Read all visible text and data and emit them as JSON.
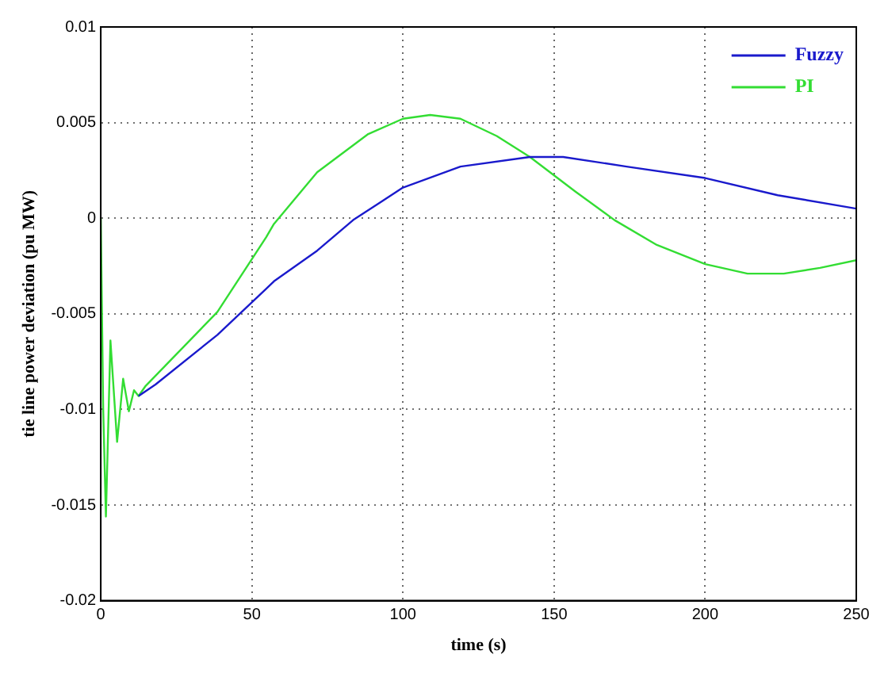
{
  "chart_data": {
    "type": "line",
    "xlabel": "time (s)",
    "ylabel": "tie line power deviation (pu MW)",
    "xlim": [
      0,
      250
    ],
    "xticks": [
      0,
      50,
      100,
      150,
      200,
      250
    ],
    "ylim": [
      -0.02,
      0.01
    ],
    "yticks": [
      -0.02,
      -0.015,
      -0.01,
      -0.005,
      0,
      0.005,
      0.01
    ],
    "grid": true,
    "legend": "top right",
    "marker": "none",
    "line_style": "solid",
    "series": [
      {
        "name": "Fuzzy",
        "color": "#1a1acc",
        "x": [
          12.5,
          18.1,
          38.6,
          54.7,
          57.3,
          71.6,
          83.5,
          100,
          119,
          142,
          153,
          174,
          200,
          224,
          250
        ],
        "values": [
          -0.0093,
          -0.0087,
          -0.0061,
          -0.0037,
          -0.0033,
          -0.0017,
          -0.0001,
          0.0016,
          0.0027,
          0.0032,
          0.0032,
          0.0027,
          0.0021,
          0.0012,
          0.0005
        ]
      },
      {
        "name": "PI",
        "color": "#33dd33",
        "x": [
          0,
          0.8,
          1.7,
          3.2,
          5.4,
          7.4,
          9.3,
          11,
          12.5,
          14.7,
          38.6,
          54.7,
          57.3,
          71.6,
          88.5,
          100,
          109,
          119,
          131,
          142,
          157,
          170,
          184,
          200,
          214,
          226,
          238,
          250
        ],
        "values": [
          0,
          -0.01,
          -0.0156,
          -0.0064,
          -0.0117,
          -0.0084,
          -0.0101,
          -0.009,
          -0.0093,
          -0.0088,
          -0.0049,
          -0.001,
          -0.0003,
          0.0024,
          0.0044,
          0.0052,
          0.0054,
          0.0052,
          0.0043,
          0.0032,
          0.0014,
          -0.0001,
          -0.0014,
          -0.0024,
          -0.0029,
          -0.0029,
          -0.0026,
          -0.0022
        ]
      }
    ]
  }
}
